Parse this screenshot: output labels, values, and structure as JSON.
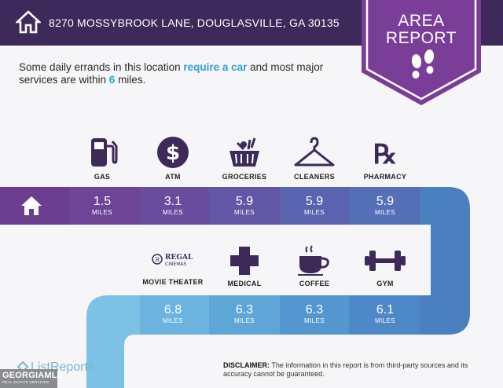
{
  "header": {
    "address": "8270 MOSSYBROOK LANE, DOUGLASVILLE, GA 30135",
    "home_icon": "house-icon"
  },
  "badge": {
    "line1": "AREA",
    "line2": "REPORT",
    "icon": "footprints-icon"
  },
  "intro": {
    "part1": "Some daily errands in this location ",
    "highlight1": "require a car",
    "part2": " and most major services are within ",
    "highlight2": "6",
    "part3": " miles."
  },
  "row1": [
    {
      "label": "GAS",
      "icon": "gas-pump-icon",
      "distance": "1.5",
      "unit": "MILES"
    },
    {
      "label": "ATM",
      "icon": "dollar-icon",
      "distance": "3.1",
      "unit": "MILES"
    },
    {
      "label": "GROCERIES",
      "icon": "grocery-basket-icon",
      "distance": "5.9",
      "unit": "MILES"
    },
    {
      "label": "CLEANERS",
      "icon": "hanger-icon",
      "distance": "5.9",
      "unit": "MILES"
    },
    {
      "label": "PHARMACY",
      "icon": "rx-icon",
      "distance": "5.9",
      "unit": "MILES"
    }
  ],
  "row2": [
    {
      "label": "MOVIE THEATER",
      "icon": "regal-cinemas-logo",
      "logo_text1": "REGAL",
      "logo_text2": "CINEMAS",
      "distance": "6.8",
      "unit": "MILES"
    },
    {
      "label": "MEDICAL",
      "icon": "medical-cross-icon",
      "distance": "6.3",
      "unit": "MILES"
    },
    {
      "label": "COFFEE",
      "icon": "coffee-cup-icon",
      "distance": "6.3",
      "unit": "MILES"
    },
    {
      "label": "GYM",
      "icon": "dumbbell-icon",
      "distance": "6.1",
      "unit": "MILES"
    }
  ],
  "footer": {
    "brand": "ListReports",
    "mls_title": "GEORGIAMLS",
    "mls_sub": "REAL ESTATE SERVICES",
    "disclaimer_label": "DISCLAIMER:",
    "disclaimer_text": " The information in this report is from third-party sources and its accuracy cannot be guaranteed."
  },
  "colors": {
    "header_bg": "#3d2a5a",
    "badge_bg": "#7a3d98",
    "accent_blue": "#2fa0d2",
    "row_purple_dark": "#6a3d8f",
    "row_blue": "#4a7fc0",
    "row_light_blue": "#7ec1e6"
  }
}
